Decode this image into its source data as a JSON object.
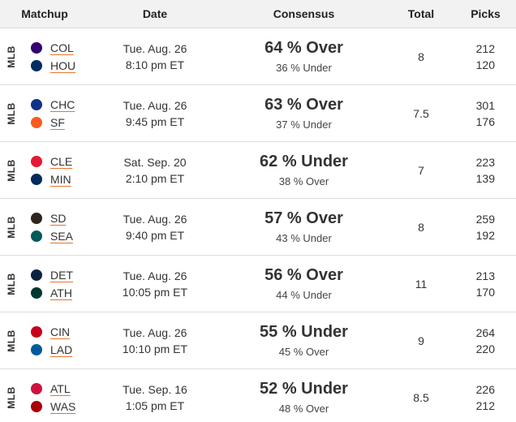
{
  "header": {
    "matchup": "Matchup",
    "date": "Date",
    "consensus": "Consensus",
    "total": "Total",
    "picks": "Picks"
  },
  "rows": [
    {
      "league": "MLB",
      "team1": {
        "abbr": "COL",
        "logo_color": "#33006f",
        "icon": "rockies-logo-icon"
      },
      "team2": {
        "abbr": "HOU",
        "logo_color": "#002d62",
        "icon": "astros-logo-icon"
      },
      "date_line1": "Tue. Aug. 26",
      "date_line2": "8:10 pm ET",
      "consensus_main": "64 % Over",
      "consensus_sub": "36 % Under",
      "total": "8",
      "picks1": "212",
      "picks2": "120"
    },
    {
      "league": "MLB",
      "team1": {
        "abbr": "CHC",
        "logo_color": "#0e3386",
        "icon": "cubs-logo-icon"
      },
      "team2": {
        "abbr": "SF",
        "logo_color": "#fd5a1e",
        "icon": "giants-logo-icon"
      },
      "date_line1": "Tue. Aug. 26",
      "date_line2": "9:45 pm ET",
      "consensus_main": "63 % Over",
      "consensus_sub": "37 % Under",
      "total": "7.5",
      "picks1": "301",
      "picks2": "176"
    },
    {
      "league": "MLB",
      "team1": {
        "abbr": "CLE",
        "logo_color": "#e31937",
        "icon": "guardians-logo-icon"
      },
      "team2": {
        "abbr": "MIN",
        "logo_color": "#002b5c",
        "icon": "twins-logo-icon"
      },
      "date_line1": "Sat. Sep. 20",
      "date_line2": "2:10 pm ET",
      "consensus_main": "62 % Under",
      "consensus_sub": "38 % Over",
      "total": "7",
      "picks1": "223",
      "picks2": "139"
    },
    {
      "league": "MLB",
      "team1": {
        "abbr": "SD",
        "logo_color": "#2f241d",
        "icon": "padres-logo-icon"
      },
      "team2": {
        "abbr": "SEA",
        "logo_color": "#005c5c",
        "icon": "mariners-logo-icon"
      },
      "date_line1": "Tue. Aug. 26",
      "date_line2": "9:40 pm ET",
      "consensus_main": "57 % Over",
      "consensus_sub": "43 % Under",
      "total": "8",
      "picks1": "259",
      "picks2": "192"
    },
    {
      "league": "MLB",
      "team1": {
        "abbr": "DET",
        "logo_color": "#0c2340",
        "icon": "tigers-logo-icon"
      },
      "team2": {
        "abbr": "ATH",
        "logo_color": "#003831",
        "icon": "athletics-logo-icon"
      },
      "date_line1": "Tue. Aug. 26",
      "date_line2": "10:05 pm ET",
      "consensus_main": "56 % Over",
      "consensus_sub": "44 % Under",
      "total": "11",
      "picks1": "213",
      "picks2": "170"
    },
    {
      "league": "MLB",
      "team1": {
        "abbr": "CIN",
        "logo_color": "#c6011f",
        "icon": "reds-logo-icon"
      },
      "team2": {
        "abbr": "LAD",
        "logo_color": "#005a9c",
        "icon": "dodgers-logo-icon"
      },
      "date_line1": "Tue. Aug. 26",
      "date_line2": "10:10 pm ET",
      "consensus_main": "55 % Under",
      "consensus_sub": "45 % Over",
      "total": "9",
      "picks1": "264",
      "picks2": "220"
    },
    {
      "league": "MLB",
      "team1": {
        "abbr": "ATL",
        "logo_color": "#ce1141",
        "icon": "braves-logo-icon"
      },
      "team2": {
        "abbr": "WAS",
        "logo_color": "#ab0003",
        "icon": "nationals-logo-icon"
      },
      "date_line1": "Tue. Sep. 16",
      "date_line2": "1:05 pm ET",
      "consensus_main": "52 % Under",
      "consensus_sub": "48 % Over",
      "total": "8.5",
      "picks1": "226",
      "picks2": "212"
    }
  ]
}
